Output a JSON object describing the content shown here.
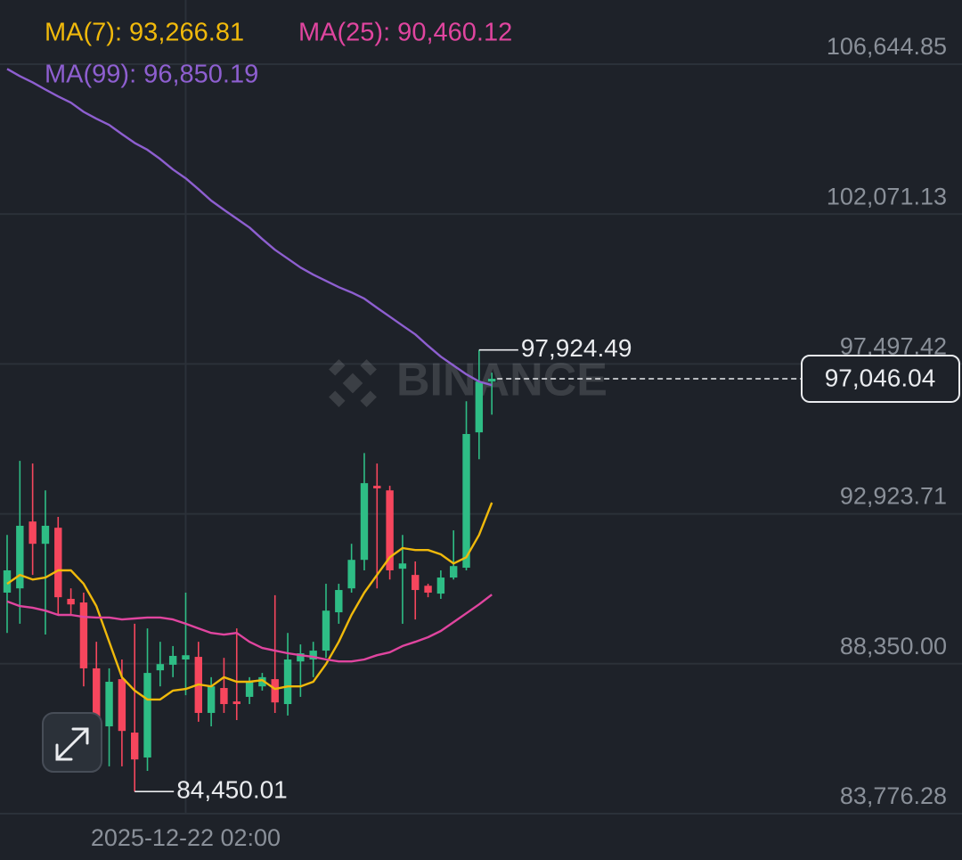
{
  "chart_data": {
    "type": "candlestick",
    "x": [
      null,
      null,
      null,
      null,
      null,
      null,
      null,
      null,
      null,
      null,
      null,
      null,
      null,
      null,
      "2025-12-22 02:00",
      null,
      null,
      null,
      null,
      null,
      null,
      null,
      null,
      null,
      null,
      null,
      null,
      null,
      null,
      null,
      null,
      null,
      null,
      null,
      null,
      null,
      null,
      null,
      null
    ],
    "open": [
      90520,
      90650,
      92690,
      92010,
      92500,
      90330,
      90220,
      88210,
      86440,
      87880,
      86250,
      85490,
      88150,
      88320,
      88480,
      88560,
      86850,
      87610,
      87200,
      87340,
      87660,
      87880,
      87120,
      88420,
      88480,
      88750,
      89920,
      90650,
      91520,
      93780,
      93640,
      91250,
      91060,
      90730,
      90490,
      90980,
      91280,
      95410,
      96960
    ],
    "high": [
      92280,
      94540,
      94460,
      93640,
      92830,
      90650,
      90520,
      89020,
      88210,
      88480,
      89570,
      89430,
      89020,
      88890,
      90520,
      89020,
      87940,
      88530,
      89430,
      87940,
      88070,
      90440,
      89290,
      88940,
      89020,
      90790,
      90790,
      92010,
      94780,
      94460,
      93780,
      92280,
      91470,
      90790,
      91200,
      92420,
      96360,
      97924.49,
      97230
    ],
    "low": [
      89290,
      89570,
      91060,
      89240,
      89840,
      89840,
      87660,
      85490,
      85220,
      85220,
      84450.01,
      85080,
      87660,
      87940,
      87390,
      86580,
      86440,
      86850,
      86630,
      87120,
      87530,
      86850,
      86770,
      87340,
      87940,
      88530,
      89570,
      90520,
      91200,
      90650,
      90920,
      89570,
      89700,
      90380,
      90330,
      90920,
      91200,
      94590,
      95950
    ],
    "close": [
      91200,
      92560,
      92010,
      92560,
      90380,
      90160,
      88210,
      86170,
      87800,
      86300,
      85430,
      88070,
      88340,
      88590,
      88610,
      86850,
      87660,
      87120,
      87120,
      87800,
      87940,
      87170,
      88480,
      88670,
      88750,
      89970,
      90600,
      91520,
      93860,
      93700,
      91200,
      91410,
      90600,
      90520,
      90980,
      91330,
      95360,
      96960,
      97046.04
    ],
    "up_color": "#2ebd85",
    "down_color": "#f6465d",
    "series": [
      {
        "name": "MA(7): 93,266.81",
        "color": "#f0b90b",
        "values": [
          90790,
          91060,
          90920,
          90980,
          91200,
          91200,
          90790,
          90110,
          89020,
          87940,
          87530,
          87260,
          87260,
          87530,
          87580,
          87720,
          87660,
          87940,
          87800,
          87800,
          87850,
          87580,
          87660,
          87660,
          87800,
          88340,
          89020,
          89840,
          90520,
          91060,
          91600,
          91880,
          91820,
          91820,
          91690,
          91410,
          91600,
          92280,
          93266.81
        ]
      },
      {
        "name": "MA(25): 90,460.12",
        "color": "#e0459f",
        "values": [
          90250,
          90110,
          90060,
          89970,
          89840,
          89840,
          89780,
          89760,
          89760,
          89700,
          89730,
          89760,
          89760,
          89700,
          89570,
          89430,
          89290,
          89240,
          89290,
          89020,
          88830,
          88750,
          88670,
          88610,
          88560,
          88480,
          88420,
          88420,
          88480,
          88610,
          88700,
          88890,
          89020,
          89160,
          89350,
          89620,
          89890,
          90160,
          90460.12
        ]
      },
      {
        "name": "MA(99): 96,850.19",
        "color": "#8e5fd0",
        "values": [
          106500,
          106280,
          106090,
          105870,
          105660,
          105470,
          105190,
          104980,
          104790,
          104510,
          104240,
          104030,
          103750,
          103430,
          103160,
          102830,
          102480,
          102200,
          101930,
          101660,
          101310,
          100980,
          100710,
          100440,
          100220,
          100030,
          99840,
          99680,
          99490,
          99210,
          98940,
          98670,
          98400,
          98050,
          97720,
          97450,
          97180,
          96960,
          96850.19
        ]
      }
    ],
    "ylim": [
      83776.28,
      108601.5
    ],
    "yticks": [
      {
        "value": 83776.28,
        "label": "83,776.28"
      },
      {
        "value": 88350,
        "label": "88,350.00"
      },
      {
        "value": 92923.71,
        "label": "92,923.71"
      },
      {
        "value": 97497.42,
        "label": "97,497.42"
      },
      {
        "value": 102071.13,
        "label": "102,071.13"
      },
      {
        "value": 106644.85,
        "label": "106,644.85"
      }
    ],
    "grid": true,
    "high_label": "97,924.49",
    "low_label": "84,450.01",
    "last_price_label": "97,046.04",
    "watermark": "BINANCE"
  }
}
